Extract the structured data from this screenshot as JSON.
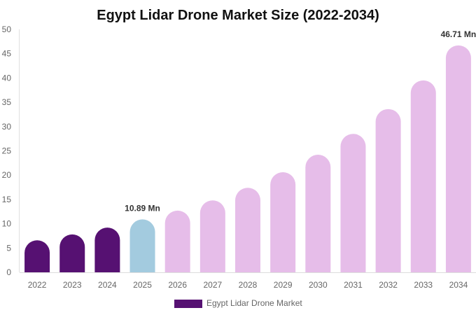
{
  "chart_data": {
    "type": "bar",
    "title": "Egypt Lidar Drone Market Size (2022-2034)",
    "categories": [
      "2022",
      "2023",
      "2024",
      "2025",
      "2026",
      "2027",
      "2028",
      "2029",
      "2030",
      "2031",
      "2032",
      "2033",
      "2034"
    ],
    "series": [
      {
        "name": "Egypt Lidar Drone Market",
        "values": [
          6.6,
          7.8,
          9.2,
          10.89,
          12.7,
          14.8,
          17.4,
          20.6,
          24.2,
          28.5,
          33.6,
          39.5,
          46.71
        ]
      }
    ],
    "data_labels": [
      {
        "category": "2025",
        "text": "10.89 Mn"
      },
      {
        "category": "2034",
        "text": "46.71 Mn"
      }
    ],
    "ylim": [
      0,
      50
    ],
    "yticks": [
      0,
      5,
      10,
      15,
      20,
      25,
      30,
      35,
      40,
      45,
      50
    ],
    "grid": false,
    "legend_position": "bottom",
    "colors": {
      "historical": "#561172",
      "current": "#a3cbdf",
      "forecast": "#e6bde9"
    },
    "bar_color_groups": [
      "historical",
      "historical",
      "historical",
      "current",
      "forecast",
      "forecast",
      "forecast",
      "forecast",
      "forecast",
      "forecast",
      "forecast",
      "forecast",
      "forecast"
    ]
  }
}
